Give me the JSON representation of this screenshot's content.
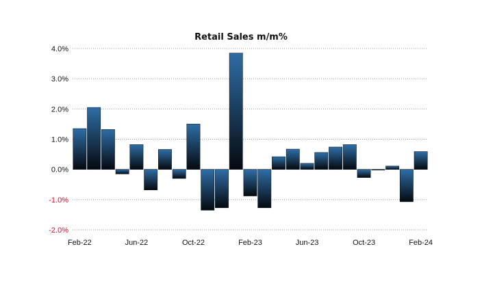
{
  "chart_data": {
    "type": "bar",
    "title": "Retail Sales m/m%",
    "xlabel": "",
    "ylabel": "",
    "categories": [
      "Feb-22",
      "Mar-22",
      "Apr-22",
      "May-22",
      "Jun-22",
      "Jul-22",
      "Aug-22",
      "Sep-22",
      "Oct-22",
      "Nov-22",
      "Dec-22",
      "Jan-23",
      "Feb-23",
      "Mar-23",
      "Apr-23",
      "May-23",
      "Jun-23",
      "Jul-23",
      "Aug-23",
      "Sep-23",
      "Oct-23",
      "Nov-23",
      "Dec-23",
      "Jan-24",
      "Feb-24"
    ],
    "values": [
      1.35,
      2.05,
      1.32,
      -0.15,
      0.82,
      -0.68,
      0.66,
      -0.3,
      1.5,
      -1.35,
      -1.27,
      3.85,
      -0.88,
      -1.27,
      0.42,
      0.67,
      0.2,
      0.56,
      0.74,
      0.82,
      -0.27,
      -0.02,
      0.11,
      -1.07,
      0.59
    ],
    "ylim": [
      -2.0,
      4.0
    ],
    "yticks": [
      4.0,
      3.0,
      2.0,
      1.0,
      0.0,
      -1.0,
      -2.0
    ],
    "ytick_labels": [
      "4.0%",
      "3.0%",
      "2.0%",
      "1.0%",
      "0.0%",
      "-1.0%",
      "-2.0%"
    ],
    "xtick_labels": [
      "Feb-22",
      "Jun-22",
      "Oct-22",
      "Feb-23",
      "Jun-23",
      "Oct-23",
      "Feb-24"
    ],
    "xtick_indices": [
      0,
      4,
      8,
      12,
      16,
      20,
      24
    ],
    "grid": true,
    "legend": "none",
    "colors": {
      "bar_top": "#2e6ea6",
      "bar_bottom": "#05090f",
      "negative_label": "#d0102a",
      "positive_label": "#111111",
      "grid": "#9a9a9a"
    }
  }
}
